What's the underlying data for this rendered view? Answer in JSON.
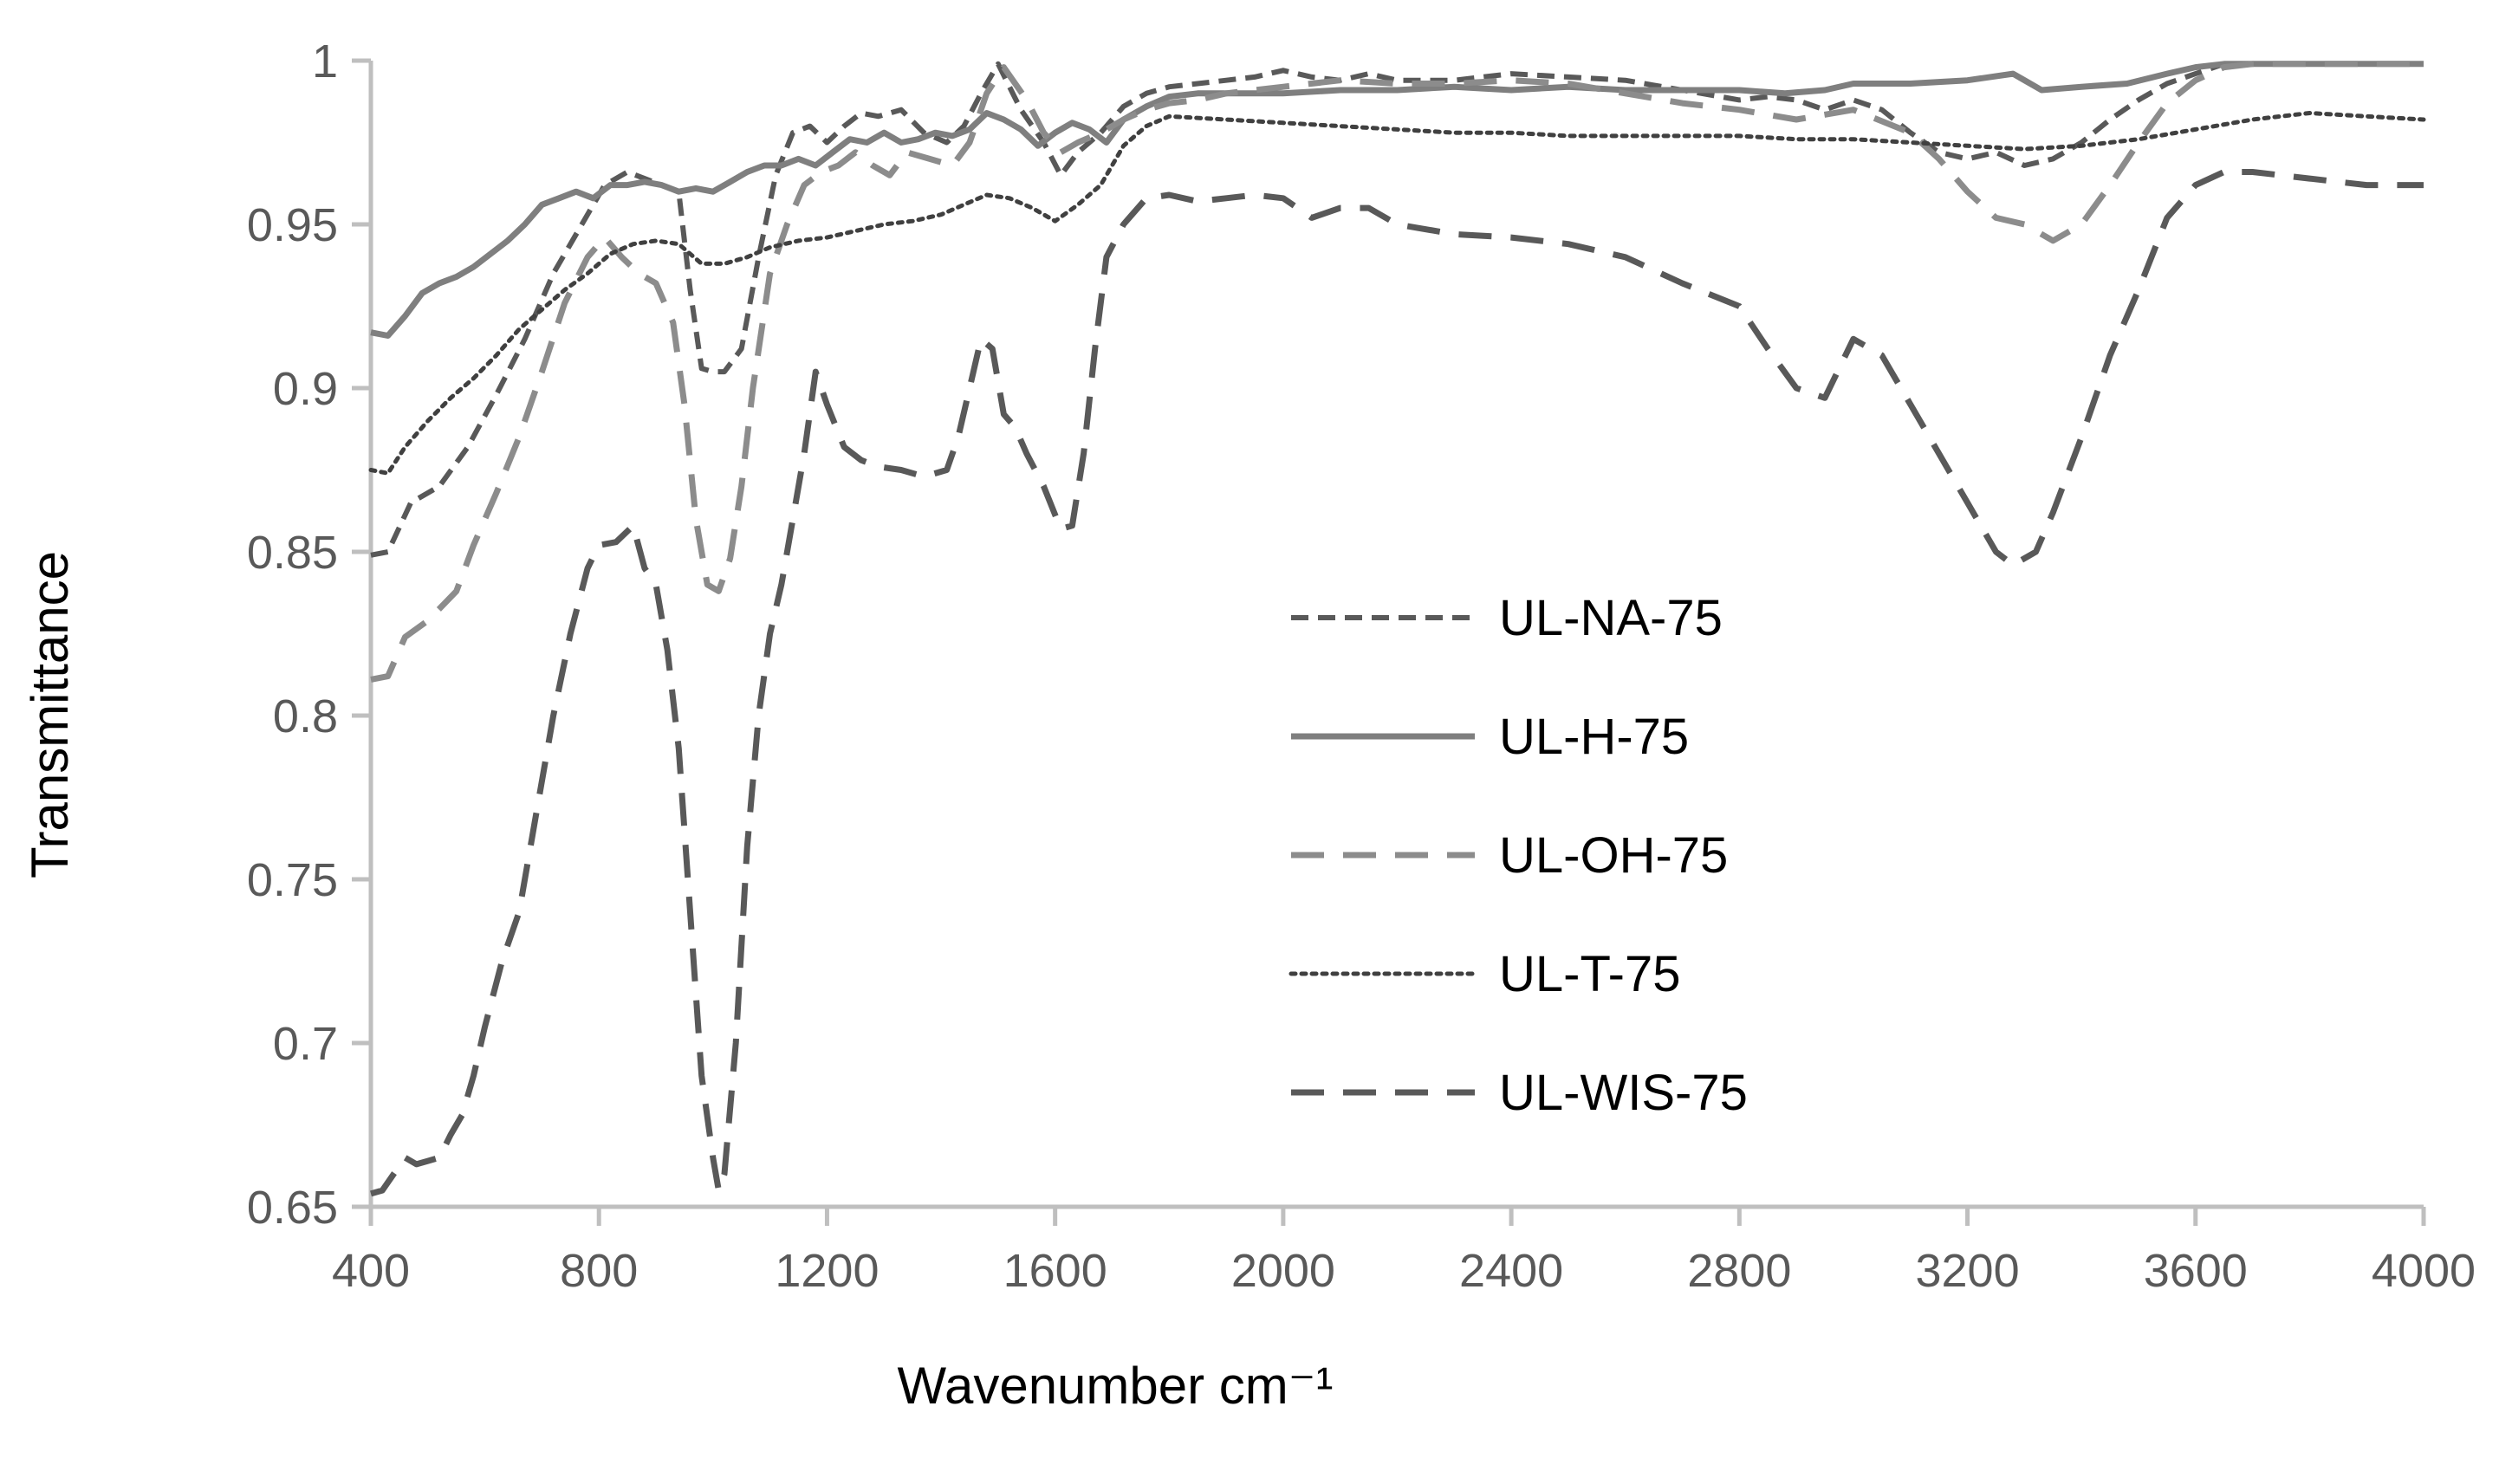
{
  "chart_data": {
    "type": "line",
    "title": "",
    "xlabel": "Wavenumber cm⁻¹",
    "ylabel": "Transmittance",
    "xlim": [
      400,
      4000
    ],
    "ylim": [
      0.65,
      1.0
    ],
    "xticks": [
      400,
      800,
      1200,
      1600,
      2000,
      2400,
      2800,
      3200,
      3600,
      4000
    ],
    "xtick_labels": [
      "400",
      "800",
      "1200",
      "1600",
      "2000",
      "2400",
      "2800",
      "3200",
      "3600",
      "4000"
    ],
    "yticks": [
      0.65,
      0.7,
      0.75,
      0.8,
      0.85,
      0.9,
      0.95,
      1.0
    ],
    "ytick_labels": [
      "0.65",
      "0.7",
      "0.75",
      "0.8",
      "0.85",
      "0.9",
      "0.95",
      "1"
    ],
    "grid": false,
    "legend_position": "center-right",
    "series": [
      {
        "name": "UL-NA-75",
        "color": "#595959",
        "dash": "short-dash",
        "x": [
          400,
          430,
          470,
          520,
          570,
          620,
          670,
          720,
          770,
          810,
          850,
          880,
          910,
          940,
          960,
          980,
          1000,
          1020,
          1050,
          1080,
          1110,
          1140,
          1170,
          1200,
          1230,
          1260,
          1290,
          1330,
          1370,
          1410,
          1440,
          1470,
          1500,
          1540,
          1580,
          1610,
          1640,
          1680,
          1720,
          1760,
          1800,
          1850,
          1900,
          1950,
          2000,
          2050,
          2100,
          2150,
          2200,
          2300,
          2400,
          2500,
          2600,
          2700,
          2800,
          2850,
          2900,
          2950,
          3000,
          3050,
          3100,
          3150,
          3200,
          3250,
          3300,
          3350,
          3400,
          3450,
          3500,
          3550,
          3600,
          3650,
          3700,
          3800,
          3900,
          4000
        ],
        "y": [
          0.849,
          0.85,
          0.865,
          0.87,
          0.882,
          0.898,
          0.915,
          0.935,
          0.95,
          0.962,
          0.966,
          0.964,
          0.962,
          0.96,
          0.93,
          0.906,
          0.905,
          0.905,
          0.912,
          0.94,
          0.965,
          0.978,
          0.98,
          0.975,
          0.98,
          0.984,
          0.983,
          0.985,
          0.978,
          0.975,
          0.98,
          0.99,
          0.999,
          0.985,
          0.975,
          0.965,
          0.972,
          0.978,
          0.986,
          0.99,
          0.992,
          0.993,
          0.994,
          0.995,
          0.997,
          0.995,
          0.994,
          0.996,
          0.994,
          0.994,
          0.996,
          0.995,
          0.994,
          0.991,
          0.988,
          0.989,
          0.988,
          0.985,
          0.988,
          0.985,
          0.978,
          0.972,
          0.97,
          0.972,
          0.968,
          0.97,
          0.975,
          0.982,
          0.988,
          0.993,
          0.996,
          0.999,
          0.999,
          0.999,
          0.999,
          0.999
        ]
      },
      {
        "name": "UL-H-75",
        "color": "#7f7f7f",
        "dash": "solid",
        "x": [
          400,
          430,
          460,
          490,
          520,
          550,
          580,
          610,
          640,
          670,
          700,
          730,
          760,
          790,
          820,
          850,
          880,
          910,
          940,
          970,
          1000,
          1030,
          1060,
          1090,
          1120,
          1150,
          1180,
          1210,
          1240,
          1270,
          1300,
          1330,
          1360,
          1390,
          1420,
          1450,
          1480,
          1510,
          1540,
          1570,
          1600,
          1630,
          1660,
          1690,
          1720,
          1760,
          1800,
          1850,
          1900,
          1950,
          2000,
          2100,
          2200,
          2300,
          2400,
          2500,
          2600,
          2700,
          2800,
          2880,
          2950,
          3000,
          3100,
          3200,
          3280,
          3300,
          3330,
          3400,
          3480,
          3550,
          3600,
          3650,
          3700,
          3800,
          3900,
          4000
        ],
        "y": [
          0.917,
          0.916,
          0.922,
          0.929,
          0.932,
          0.934,
          0.937,
          0.941,
          0.945,
          0.95,
          0.956,
          0.958,
          0.96,
          0.958,
          0.962,
          0.962,
          0.963,
          0.962,
          0.96,
          0.961,
          0.96,
          0.963,
          0.966,
          0.968,
          0.968,
          0.97,
          0.968,
          0.972,
          0.976,
          0.975,
          0.978,
          0.975,
          0.976,
          0.978,
          0.977,
          0.979,
          0.984,
          0.982,
          0.979,
          0.974,
          0.978,
          0.981,
          0.979,
          0.975,
          0.982,
          0.986,
          0.989,
          0.99,
          0.99,
          0.99,
          0.99,
          0.991,
          0.991,
          0.992,
          0.991,
          0.992,
          0.991,
          0.991,
          0.991,
          0.99,
          0.991,
          0.993,
          0.993,
          0.994,
          0.996,
          0.994,
          0.991,
          0.992,
          0.993,
          0.996,
          0.998,
          0.999,
          0.999,
          0.999,
          0.999,
          0.999
        ]
      },
      {
        "name": "UL-OH-75",
        "color": "#8c8c8c",
        "dash": "long-dash",
        "x": [
          400,
          430,
          460,
          500,
          550,
          580,
          620,
          660,
          700,
          740,
          780,
          810,
          840,
          870,
          900,
          930,
          950,
          970,
          990,
          1010,
          1030,
          1050,
          1070,
          1100,
          1130,
          1160,
          1190,
          1220,
          1250,
          1280,
          1310,
          1340,
          1380,
          1420,
          1450,
          1480,
          1510,
          1550,
          1580,
          1610,
          1640,
          1680,
          1720,
          1760,
          1800,
          1850,
          1900,
          2000,
          2100,
          2200,
          2300,
          2400,
          2500,
          2600,
          2700,
          2800,
          2900,
          3000,
          3100,
          3150,
          3200,
          3250,
          3300,
          3350,
          3400,
          3450,
          3500,
          3550,
          3600,
          3650,
          3700,
          3800,
          3900,
          4000
        ],
        "y": [
          0.811,
          0.812,
          0.824,
          0.829,
          0.838,
          0.852,
          0.868,
          0.885,
          0.905,
          0.926,
          0.94,
          0.946,
          0.94,
          0.935,
          0.932,
          0.92,
          0.895,
          0.86,
          0.84,
          0.838,
          0.848,
          0.87,
          0.9,
          0.935,
          0.95,
          0.962,
          0.966,
          0.968,
          0.972,
          0.968,
          0.965,
          0.972,
          0.97,
          0.968,
          0.975,
          0.99,
          0.998,
          0.988,
          0.978,
          0.972,
          0.975,
          0.978,
          0.982,
          0.985,
          0.987,
          0.988,
          0.99,
          0.992,
          0.994,
          0.993,
          0.993,
          0.994,
          0.993,
          0.99,
          0.987,
          0.985,
          0.982,
          0.985,
          0.978,
          0.97,
          0.96,
          0.952,
          0.95,
          0.945,
          0.95,
          0.962,
          0.975,
          0.987,
          0.994,
          0.998,
          0.999,
          0.999,
          0.999,
          0.999
        ]
      },
      {
        "name": "UL-T-75",
        "color": "#404040",
        "dash": "dotted",
        "x": [
          400,
          430,
          460,
          500,
          540,
          580,
          620,
          660,
          700,
          740,
          780,
          820,
          860,
          900,
          940,
          980,
          1020,
          1060,
          1100,
          1150,
          1200,
          1250,
          1300,
          1350,
          1400,
          1440,
          1480,
          1520,
          1560,
          1600,
          1640,
          1680,
          1720,
          1760,
          1800,
          1900,
          2000,
          2100,
          2200,
          2300,
          2400,
          2500,
          2600,
          2700,
          2800,
          2900,
          3000,
          3100,
          3200,
          3300,
          3400,
          3500,
          3600,
          3700,
          3800,
          3900,
          4000
        ],
        "y": [
          0.875,
          0.874,
          0.882,
          0.89,
          0.897,
          0.903,
          0.91,
          0.918,
          0.924,
          0.93,
          0.935,
          0.941,
          0.944,
          0.945,
          0.944,
          0.938,
          0.938,
          0.94,
          0.943,
          0.945,
          0.946,
          0.948,
          0.95,
          0.951,
          0.953,
          0.956,
          0.959,
          0.958,
          0.955,
          0.951,
          0.956,
          0.962,
          0.974,
          0.98,
          0.983,
          0.982,
          0.981,
          0.98,
          0.979,
          0.978,
          0.978,
          0.977,
          0.977,
          0.977,
          0.977,
          0.976,
          0.976,
          0.975,
          0.974,
          0.973,
          0.974,
          0.976,
          0.979,
          0.982,
          0.984,
          0.983,
          0.982
        ]
      },
      {
        "name": "UL-WIS-75",
        "color": "#595959",
        "dash": "long-dash",
        "x": [
          400,
          420,
          440,
          460,
          480,
          500,
          520,
          540,
          560,
          580,
          600,
          630,
          660,
          690,
          720,
          750,
          780,
          800,
          830,
          860,
          880,
          900,
          920,
          940,
          960,
          980,
          1000,
          1010,
          1020,
          1040,
          1060,
          1080,
          1100,
          1120,
          1140,
          1160,
          1180,
          1200,
          1230,
          1260,
          1290,
          1330,
          1370,
          1410,
          1430,
          1450,
          1470,
          1490,
          1510,
          1530,
          1550,
          1580,
          1610,
          1630,
          1650,
          1670,
          1690,
          1720,
          1760,
          1800,
          1850,
          1900,
          1950,
          2000,
          2050,
          2100,
          2150,
          2200,
          2300,
          2400,
          2500,
          2600,
          2700,
          2800,
          2850,
          2900,
          2950,
          3000,
          3050,
          3100,
          3150,
          3200,
          3250,
          3280,
          3320,
          3350,
          3400,
          3450,
          3500,
          3550,
          3600,
          3650,
          3700,
          3800,
          3900,
          4000
        ],
        "y": [
          0.654,
          0.655,
          0.66,
          0.665,
          0.663,
          0.664,
          0.665,
          0.672,
          0.678,
          0.69,
          0.705,
          0.725,
          0.74,
          0.77,
          0.8,
          0.825,
          0.845,
          0.852,
          0.853,
          0.858,
          0.845,
          0.84,
          0.82,
          0.79,
          0.74,
          0.69,
          0.665,
          0.655,
          0.66,
          0.7,
          0.76,
          0.8,
          0.825,
          0.84,
          0.86,
          0.88,
          0.905,
          0.895,
          0.882,
          0.878,
          0.876,
          0.875,
          0.873,
          0.875,
          0.885,
          0.9,
          0.915,
          0.912,
          0.892,
          0.888,
          0.88,
          0.87,
          0.857,
          0.858,
          0.88,
          0.912,
          0.94,
          0.95,
          0.958,
          0.959,
          0.957,
          0.958,
          0.959,
          0.958,
          0.952,
          0.955,
          0.955,
          0.95,
          0.947,
          0.946,
          0.944,
          0.94,
          0.932,
          0.925,
          0.912,
          0.9,
          0.897,
          0.915,
          0.91,
          0.895,
          0.88,
          0.865,
          0.85,
          0.846,
          0.85,
          0.862,
          0.885,
          0.91,
          0.93,
          0.952,
          0.962,
          0.966,
          0.966,
          0.964,
          0.962,
          0.962
        ]
      }
    ]
  }
}
